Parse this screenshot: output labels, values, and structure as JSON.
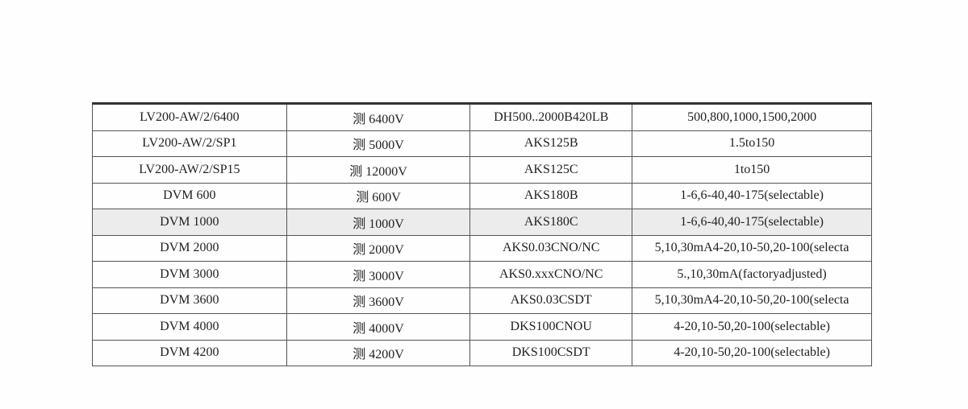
{
  "table": {
    "highlighted_row": 4,
    "rows": [
      [
        "LV200-AW/2/6400",
        "测 6400V",
        "DH500..2000B420LB",
        "500,800,1000,1500,2000"
      ],
      [
        "LV200-AW/2/SP1",
        "测 5000V",
        "AKS125B",
        "1.5to150"
      ],
      [
        "LV200-AW/2/SP15",
        "测 12000V",
        "AKS125C",
        "1to150"
      ],
      [
        "DVM 600",
        "测 600V",
        "AKS180B",
        "1-6,6-40,40-175(selectable)"
      ],
      [
        "DVM 1000",
        "测 1000V",
        "AKS180C",
        "1-6,6-40,40-175(selectable)"
      ],
      [
        "DVM 2000",
        "测 2000V",
        "AKS0.03CNO/NC",
        "5,10,30mA4-20,10-50,20-100(selecta"
      ],
      [
        "DVM 3000",
        "测 3000V",
        "AKS0.xxxCNO/NC",
        "5.,10,30mA(factoryadjusted)"
      ],
      [
        "DVM 3600",
        "测 3600V",
        "AKS0.03CSDT",
        "5,10,30mA4-20,10-50,20-100(selecta"
      ],
      [
        "DVM 4000",
        "测 4000V",
        "DKS100CNOU",
        "4-20,10-50,20-100(selectable)"
      ],
      [
        "DVM 4200",
        "测 4200V",
        "DKS100CSDT",
        "4-20,10-50,20-100(selectable)"
      ]
    ]
  }
}
